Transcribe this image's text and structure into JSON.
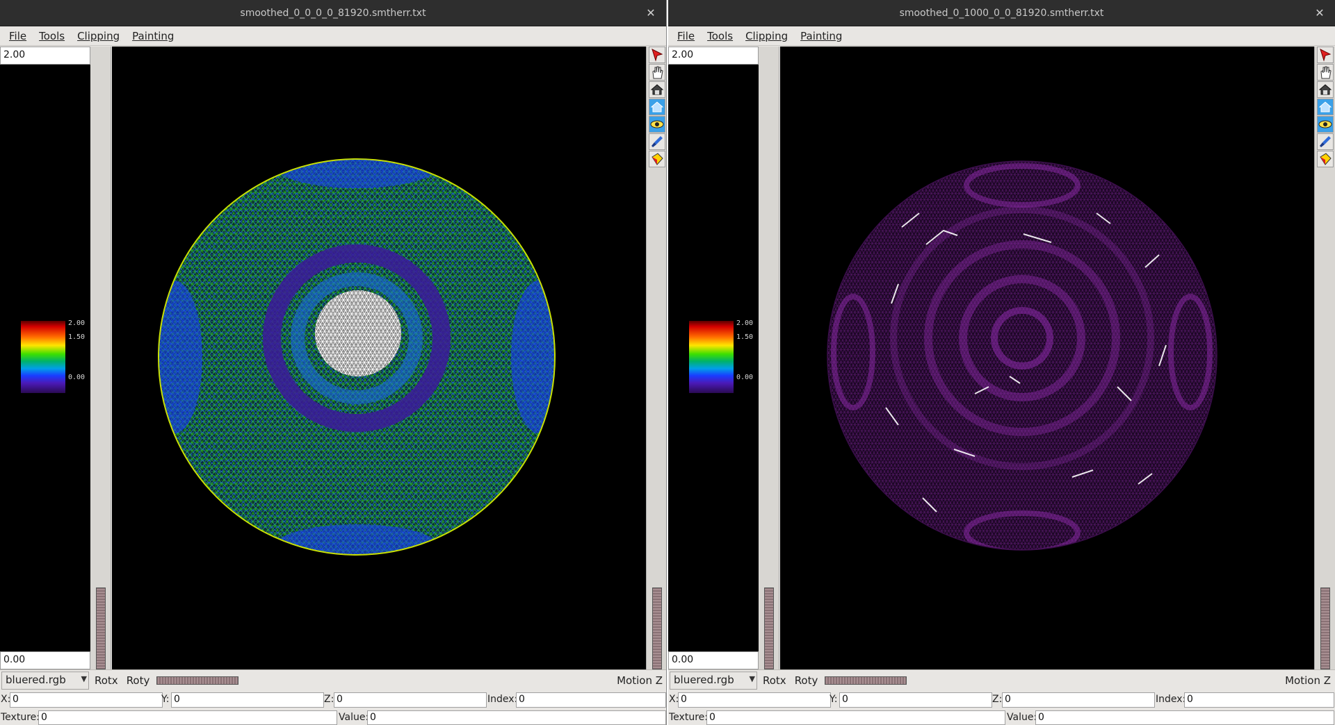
{
  "windows": [
    {
      "title": "smoothed_0_0_0_0_81920.smtherr.txt",
      "menu": [
        "File",
        "Tools",
        "Clipping",
        "Painting"
      ],
      "value_max": "2.00",
      "value_min": "0.00",
      "colorbar_labels": [
        "2.00",
        "1.50",
        "0.00"
      ],
      "colormap": "bluered.rgb",
      "rotx_label": "Rotx",
      "roty_label": "Roty",
      "motion_label": "Motion Z",
      "x_label": "X:",
      "x_value": "0",
      "y_label": "Y:",
      "y_value": "0",
      "z_label": "Z:",
      "z_value": "0",
      "index_label": "Index:",
      "index_value": "0",
      "texture_label": "Texture:",
      "texture_value": "0",
      "value_label": "Value:",
      "value_value": "0"
    },
    {
      "title": "smoothed_0_1000_0_0_81920.smtherr.txt",
      "menu": [
        "File",
        "Tools",
        "Clipping",
        "Painting"
      ],
      "value_max": "2.00",
      "value_min": "0.00",
      "colorbar_labels": [
        "2.00",
        "1.50",
        "0.00"
      ],
      "colormap": "bluered.rgb",
      "rotx_label": "Rotx",
      "roty_label": "Roty",
      "motion_label": "Motion Z",
      "x_label": "X:",
      "x_value": "0",
      "y_label": "Y:",
      "y_value": "0",
      "z_label": "Z:",
      "z_value": "0",
      "index_label": "Index:",
      "index_value": "0",
      "texture_label": "Texture:",
      "texture_value": "0",
      "value_label": "Value:",
      "value_value": "0"
    }
  ],
  "toolbar_icons": [
    "select-arrow-icon",
    "hand-pan-icon",
    "home-view-icon",
    "reset-view-icon",
    "eye-view-icon",
    "paint-brush-icon",
    "paint-bucket-icon"
  ],
  "colors": {
    "sphere_left_wire": [
      "#1f6bff",
      "#2ad000",
      "#ffe600",
      "#ff2a00",
      "#4a14a8",
      "#ffffff"
    ],
    "sphere_right_wire": [
      "#5a1a6e",
      "#8b2aa8",
      "#ffffff"
    ]
  }
}
